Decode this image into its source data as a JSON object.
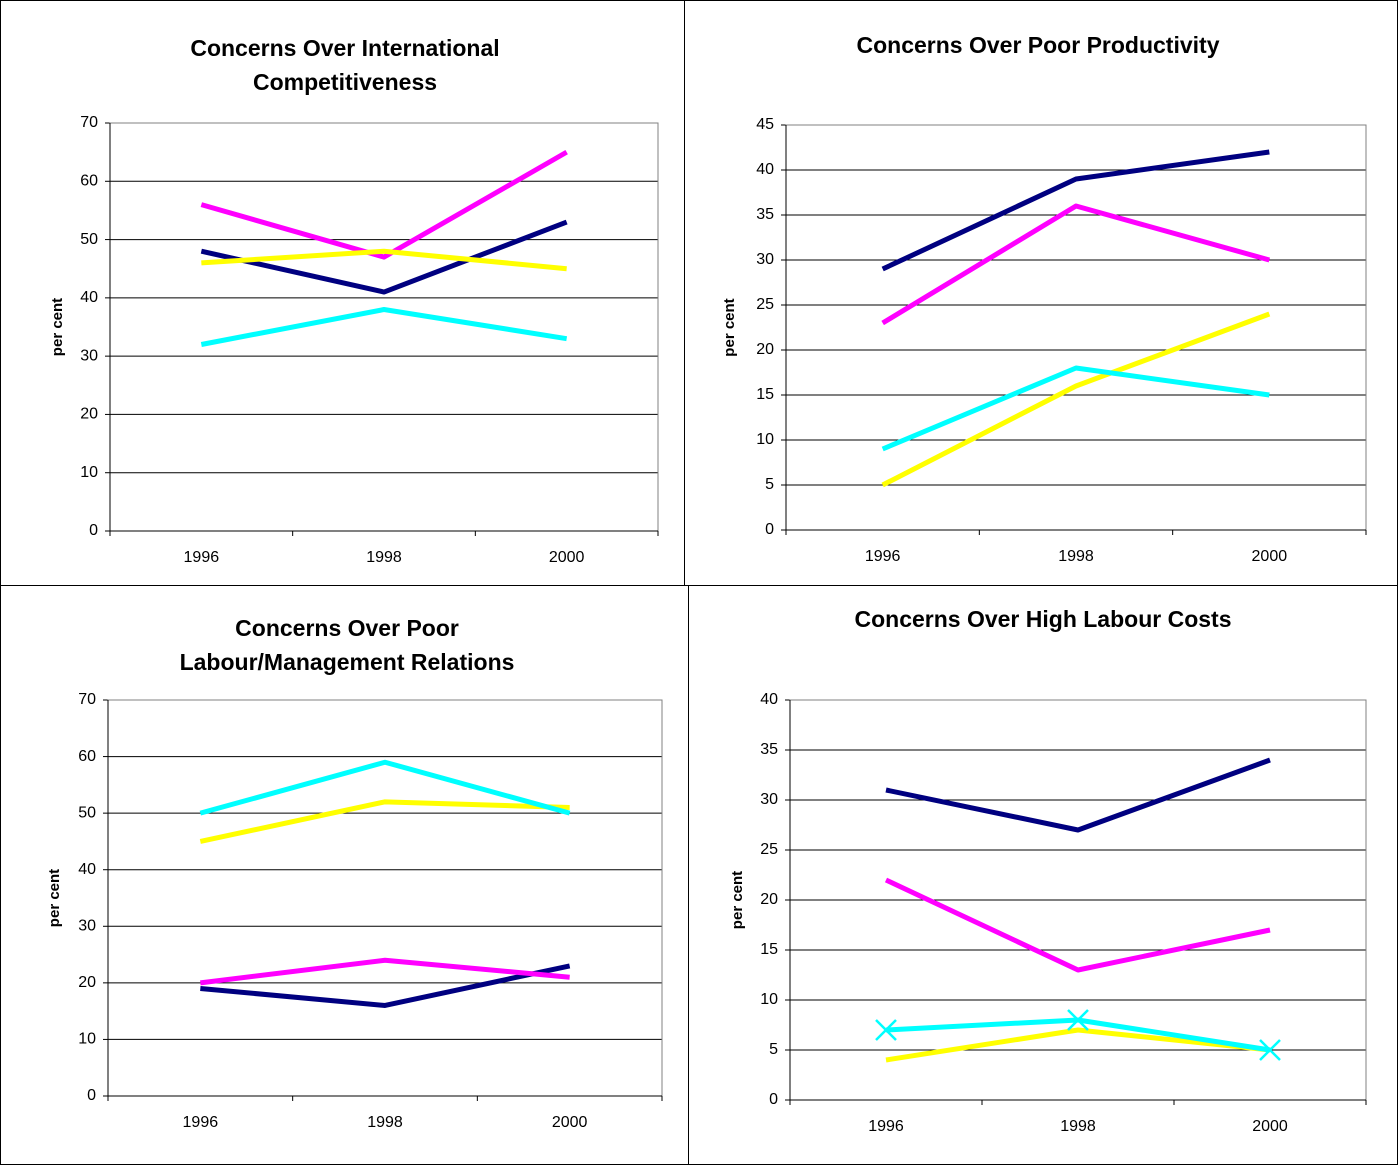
{
  "chart_data": [
    {
      "type": "line",
      "title": [
        "Concerns Over International",
        "Competitiveness"
      ],
      "ylabel": "per cent",
      "categories": [
        "1996",
        "1998",
        "2000"
      ],
      "ylim": [
        0,
        70
      ],
      "yticks": [
        0,
        10,
        20,
        30,
        40,
        50,
        60,
        70
      ],
      "grid": true,
      "series": [
        {
          "color": "#000080",
          "values": [
            48,
            41,
            53
          ]
        },
        {
          "color": "#ff00ff",
          "values": [
            56,
            47,
            65
          ]
        },
        {
          "color": "#ffff00",
          "values": [
            46,
            48,
            45
          ]
        },
        {
          "color": "#00ffff",
          "values": [
            32,
            38,
            33
          ]
        }
      ]
    },
    {
      "type": "line",
      "title": [
        "Concerns Over Poor Productivity"
      ],
      "ylabel": "per cent",
      "categories": [
        "1996",
        "1998",
        "2000"
      ],
      "ylim": [
        0,
        45
      ],
      "yticks": [
        0,
        5,
        10,
        15,
        20,
        25,
        30,
        35,
        40,
        45
      ],
      "grid": true,
      "series": [
        {
          "color": "#000080",
          "values": [
            29,
            39,
            42
          ]
        },
        {
          "color": "#ff00ff",
          "values": [
            23,
            36,
            30
          ]
        },
        {
          "color": "#ffff00",
          "values": [
            5,
            16,
            24
          ]
        },
        {
          "color": "#00ffff",
          "values": [
            9,
            18,
            15
          ]
        }
      ]
    },
    {
      "type": "line",
      "title": [
        "Concerns Over Poor",
        "Labour/Management Relations"
      ],
      "ylabel": "per cent",
      "categories": [
        "1996",
        "1998",
        "2000"
      ],
      "ylim": [
        0,
        70
      ],
      "yticks": [
        0,
        10,
        20,
        30,
        40,
        50,
        60,
        70
      ],
      "grid": true,
      "series": [
        {
          "color": "#000080",
          "values": [
            19,
            16,
            23
          ]
        },
        {
          "color": "#ff00ff",
          "values": [
            20,
            24,
            21
          ]
        },
        {
          "color": "#ffff00",
          "values": [
            45,
            52,
            51
          ]
        },
        {
          "color": "#00ffff",
          "values": [
            50,
            59,
            50
          ]
        }
      ]
    },
    {
      "type": "line",
      "title": [
        "Concerns Over High Labour Costs"
      ],
      "ylabel": "per cent",
      "categories": [
        "1996",
        "1998",
        "2000"
      ],
      "ylim": [
        0,
        40
      ],
      "yticks": [
        0,
        5,
        10,
        15,
        20,
        25,
        30,
        35,
        40
      ],
      "grid": true,
      "series": [
        {
          "color": "#000080",
          "values": [
            31,
            27,
            34
          ]
        },
        {
          "color": "#ff00ff",
          "values": [
            22,
            13,
            17
          ]
        },
        {
          "color": "#ffff00",
          "values": [
            4,
            7,
            5
          ]
        },
        {
          "color": "#00ffff",
          "values": [
            7,
            8,
            5
          ],
          "marker": "x"
        }
      ]
    }
  ]
}
